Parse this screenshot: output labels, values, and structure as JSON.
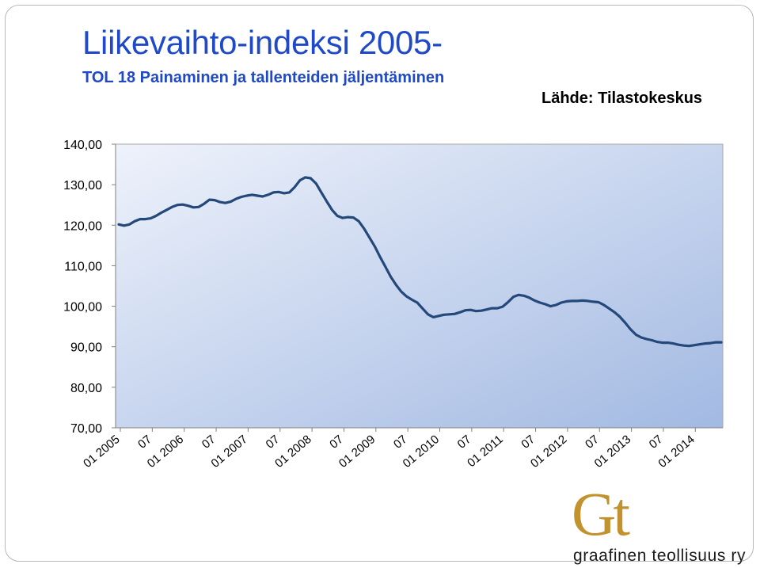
{
  "header": {
    "title": "Liikevaihto-indeksi 2005-",
    "subtitle": "TOL 18 Painaminen ja tallenteiden jäljentäminen",
    "source": "Lähde: Tilastokeskus"
  },
  "logo": {
    "mark": "Gt",
    "text": "graafinen teollisuus ry",
    "color": "#c2922e"
  },
  "colors": {
    "line": "#24487a",
    "plot_top": "#eef2fb",
    "plot_bottom": "#a2b9e2"
  },
  "chart_data": {
    "type": "line",
    "title": "",
    "xlabel": "",
    "ylabel": "",
    "ylim": [
      70,
      140
    ],
    "yticks": [
      "70,00",
      "80,00",
      "90,00",
      "100,00",
      "110,00",
      "120,00",
      "130,00",
      "140,00"
    ],
    "xticks": [
      "01 2005",
      "07",
      "01 2006",
      "07",
      "01 2007",
      "07",
      "01 2008",
      "07",
      "01 2009",
      "07",
      "01 2010",
      "07",
      "01 2011",
      "07",
      "01 2012",
      "07",
      "01 2013",
      "07",
      "01 2014"
    ],
    "grid": false,
    "legend": "none",
    "series": [
      {
        "values": [
          120.2,
          119.9,
          120.2,
          121.0,
          121.5,
          121.5,
          121.7,
          122.3,
          123.1,
          123.8,
          124.5,
          125.0,
          125.1,
          124.8,
          124.4,
          124.5,
          125.3,
          126.3,
          126.2,
          125.7,
          125.5,
          125.8,
          126.5,
          127.0,
          127.3,
          127.5,
          127.3,
          127.1,
          127.5,
          128.1,
          128.2,
          127.9,
          128.1,
          129.4,
          131.1,
          131.8,
          131.6,
          130.3,
          128.1,
          125.9,
          123.8,
          122.3,
          121.8,
          122.0,
          121.9,
          121.0,
          119.2,
          117.0,
          114.8,
          112.2,
          109.8,
          107.3,
          105.3,
          103.6,
          102.4,
          101.6,
          100.9,
          99.4,
          98.0,
          97.3,
          97.6,
          97.9,
          98.0,
          98.1,
          98.5,
          99.0,
          99.1,
          98.8,
          98.9,
          99.2,
          99.5,
          99.5,
          99.9,
          101.0,
          102.3,
          102.8,
          102.6,
          102.1,
          101.4,
          100.9,
          100.5,
          100.0,
          100.3,
          100.9,
          101.2,
          101.3,
          101.3,
          101.4,
          101.3,
          101.1,
          101.0,
          100.3,
          99.4,
          98.5,
          97.4,
          95.9,
          94.3,
          93.0,
          92.3,
          91.9,
          91.6,
          91.2,
          91.0,
          91.0,
          90.8,
          90.5,
          90.3,
          90.2,
          90.4,
          90.6,
          90.8,
          90.9,
          91.1,
          91.1
        ]
      }
    ]
  }
}
